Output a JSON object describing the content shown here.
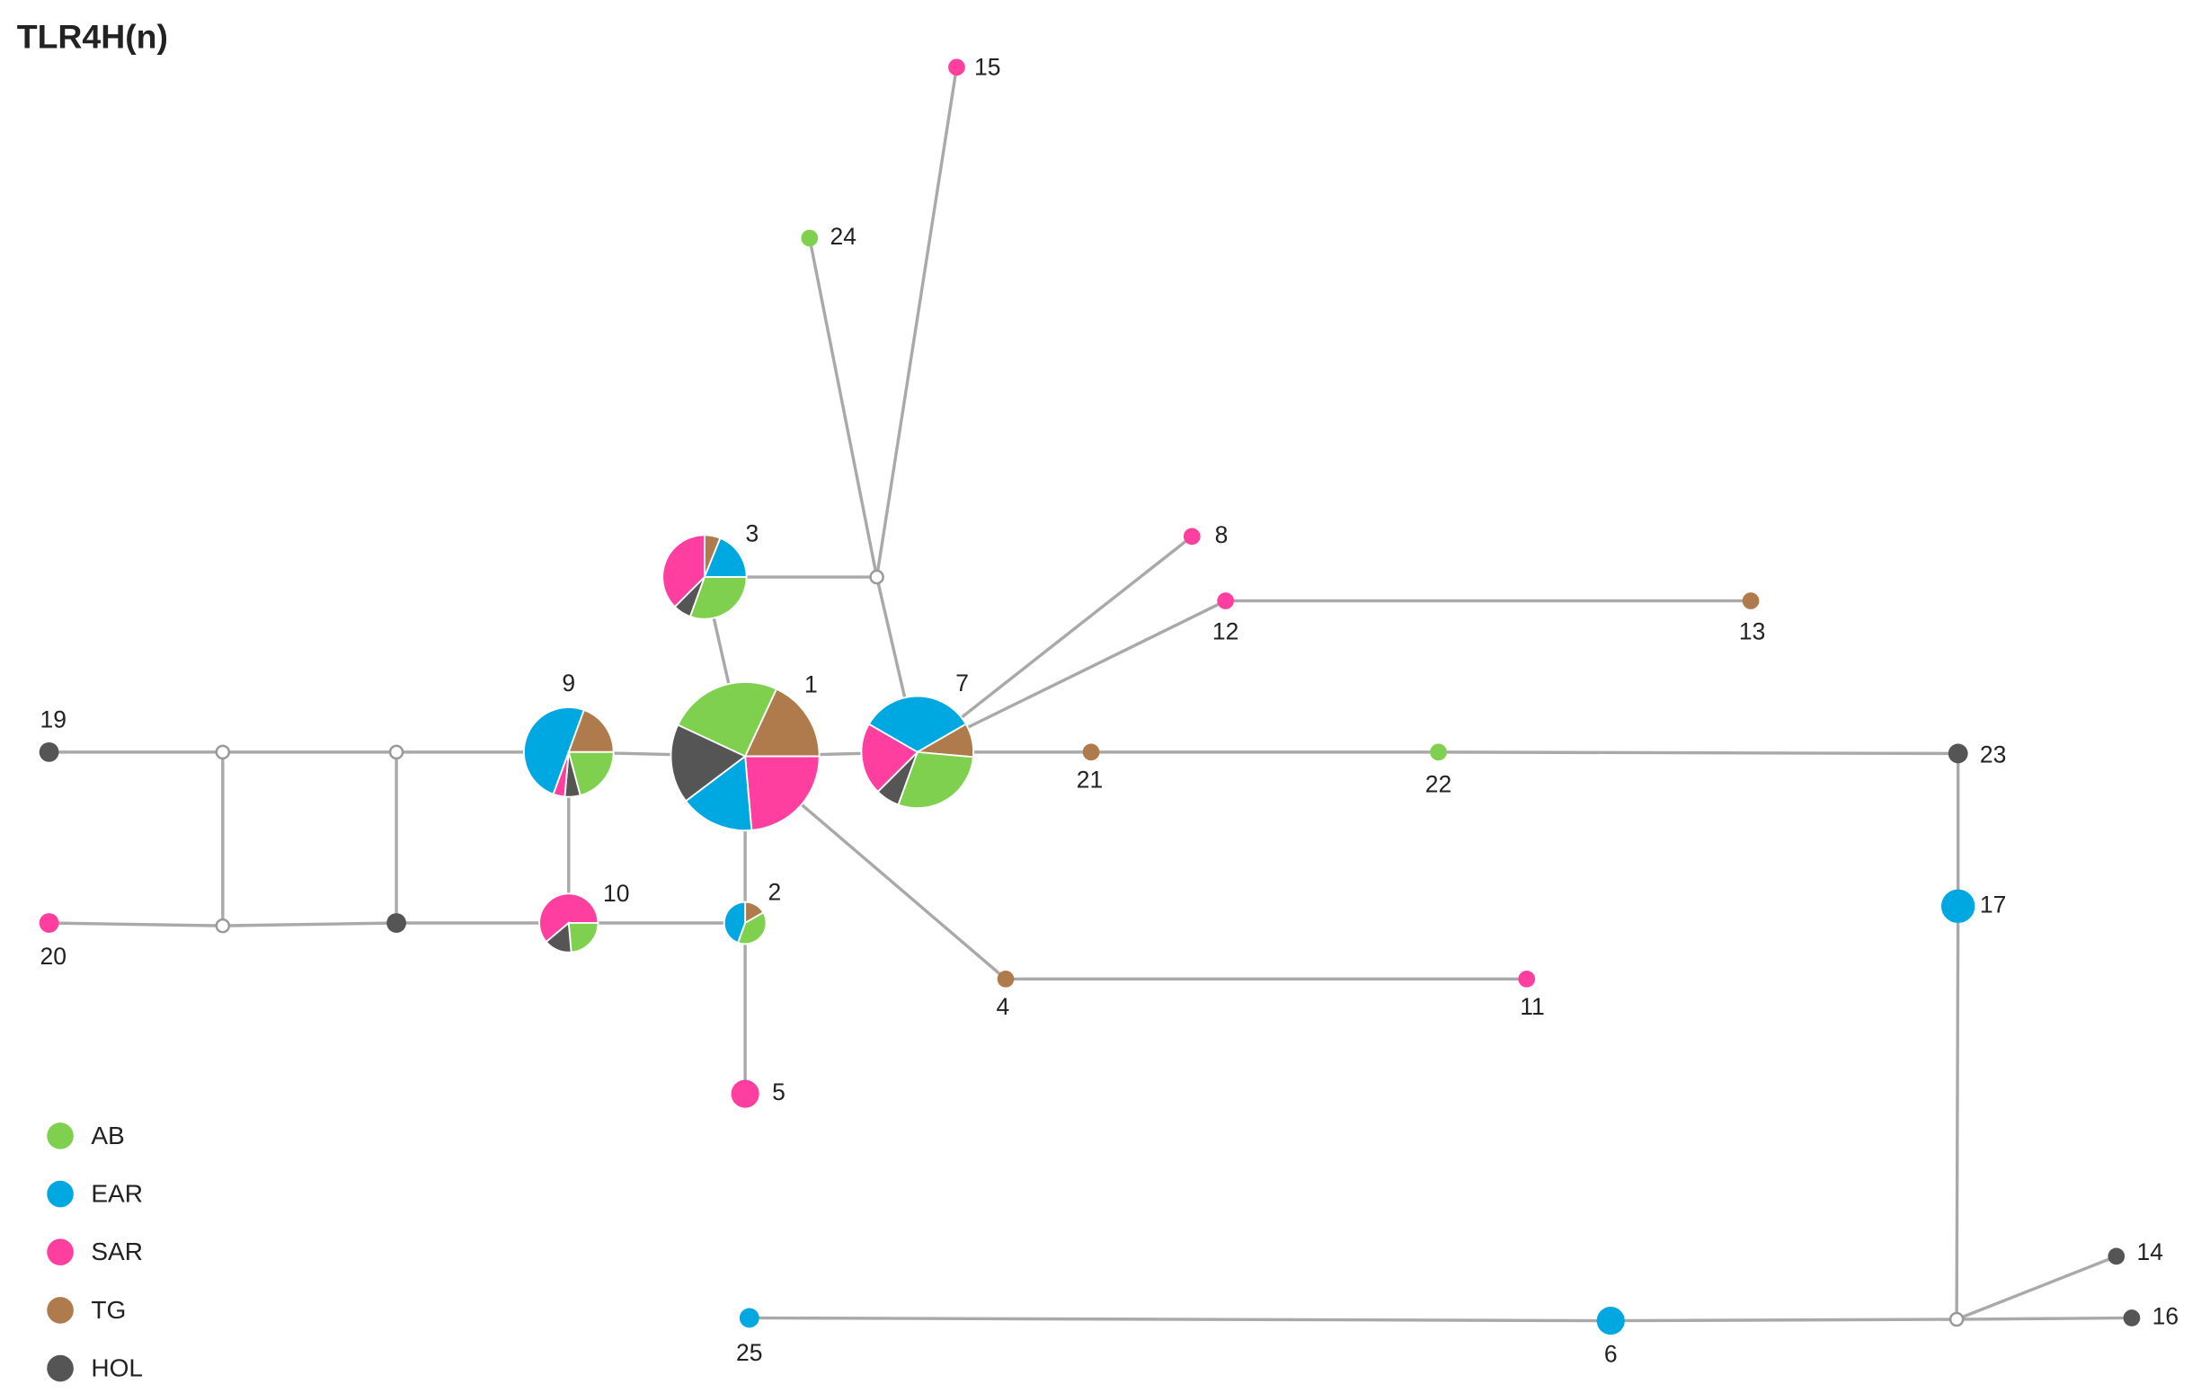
{
  "title": "TLR4H(n)",
  "nodes": [
    {
      "label": "1"
    },
    {
      "label": "2"
    },
    {
      "label": "3"
    },
    {
      "label": "4"
    },
    {
      "label": "5"
    },
    {
      "label": "6"
    },
    {
      "label": "7"
    },
    {
      "label": "8"
    },
    {
      "label": "9"
    },
    {
      "label": "10"
    },
    {
      "label": "11"
    },
    {
      "label": "12"
    },
    {
      "label": "13"
    },
    {
      "label": "14"
    },
    {
      "label": "15"
    },
    {
      "label": "16"
    },
    {
      "label": "17"
    },
    {
      "label": "19"
    },
    {
      "label": "20"
    },
    {
      "label": "21"
    },
    {
      "label": "22"
    },
    {
      "label": "23"
    },
    {
      "label": "24"
    },
    {
      "label": "25"
    }
  ],
  "legend": [
    {
      "label": "AB"
    },
    {
      "label": "EAR"
    },
    {
      "label": "SAR"
    },
    {
      "label": "TG"
    },
    {
      "label": "HOL"
    }
  ]
}
